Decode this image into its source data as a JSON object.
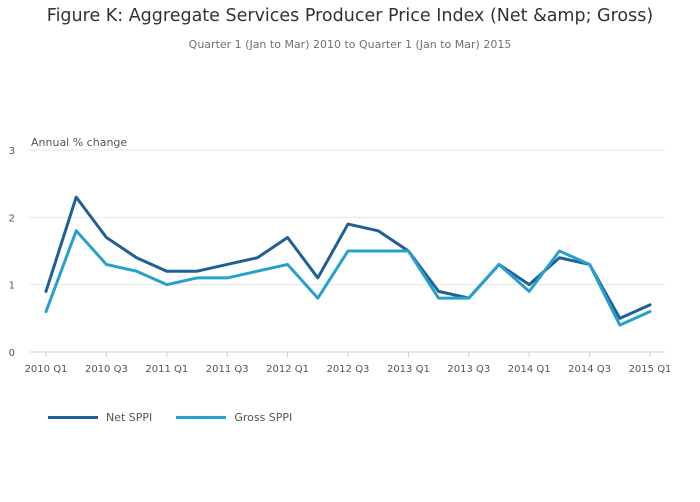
{
  "chart_data": {
    "type": "line",
    "title": "Figure K: Aggregate Services Producer Price Index (Net &amp; Gross)",
    "subtitle": "Quarter 1 (Jan to Mar) 2010 to Quarter 1 (Jan to Mar) 2015",
    "ylabel": "Annual % change",
    "xlabel": "",
    "ylim": [
      0,
      3
    ],
    "yticks": [
      0,
      1,
      2,
      3
    ],
    "grid": "horizontal",
    "legend_position": "bottom-left",
    "x": [
      "2010 Q1",
      "2010 Q2",
      "2010 Q3",
      "2010 Q4",
      "2011 Q1",
      "2011 Q2",
      "2011 Q3",
      "2011 Q4",
      "2012 Q1",
      "2012 Q2",
      "2012 Q3",
      "2012 Q4",
      "2013 Q1",
      "2013 Q2",
      "2013 Q3",
      "2013 Q4",
      "2014 Q1",
      "2014 Q2",
      "2014 Q3",
      "2014 Q4",
      "2015 Q1"
    ],
    "xtick_labels": [
      "2010 Q1",
      "2010 Q3",
      "2011 Q1",
      "2011 Q3",
      "2012 Q1",
      "2012 Q3",
      "2013 Q1",
      "2013 Q3",
      "2014 Q1",
      "2014 Q3",
      "2015 Q1"
    ],
    "series": [
      {
        "name": "Net SPPI",
        "color": "#206095",
        "values": [
          0.9,
          2.3,
          1.7,
          1.4,
          1.2,
          1.2,
          1.3,
          1.4,
          1.7,
          1.1,
          1.9,
          1.8,
          1.5,
          0.9,
          0.8,
          1.3,
          1.0,
          1.4,
          1.3,
          0.5,
          0.7
        ]
      },
      {
        "name": "Gross SPPI",
        "color": "#27A0CC",
        "values": [
          0.6,
          1.8,
          1.3,
          1.2,
          1.0,
          1.1,
          1.1,
          1.2,
          1.3,
          0.8,
          1.5,
          1.5,
          1.5,
          0.8,
          0.8,
          1.3,
          0.9,
          1.5,
          1.3,
          0.4,
          0.6
        ]
      }
    ]
  }
}
